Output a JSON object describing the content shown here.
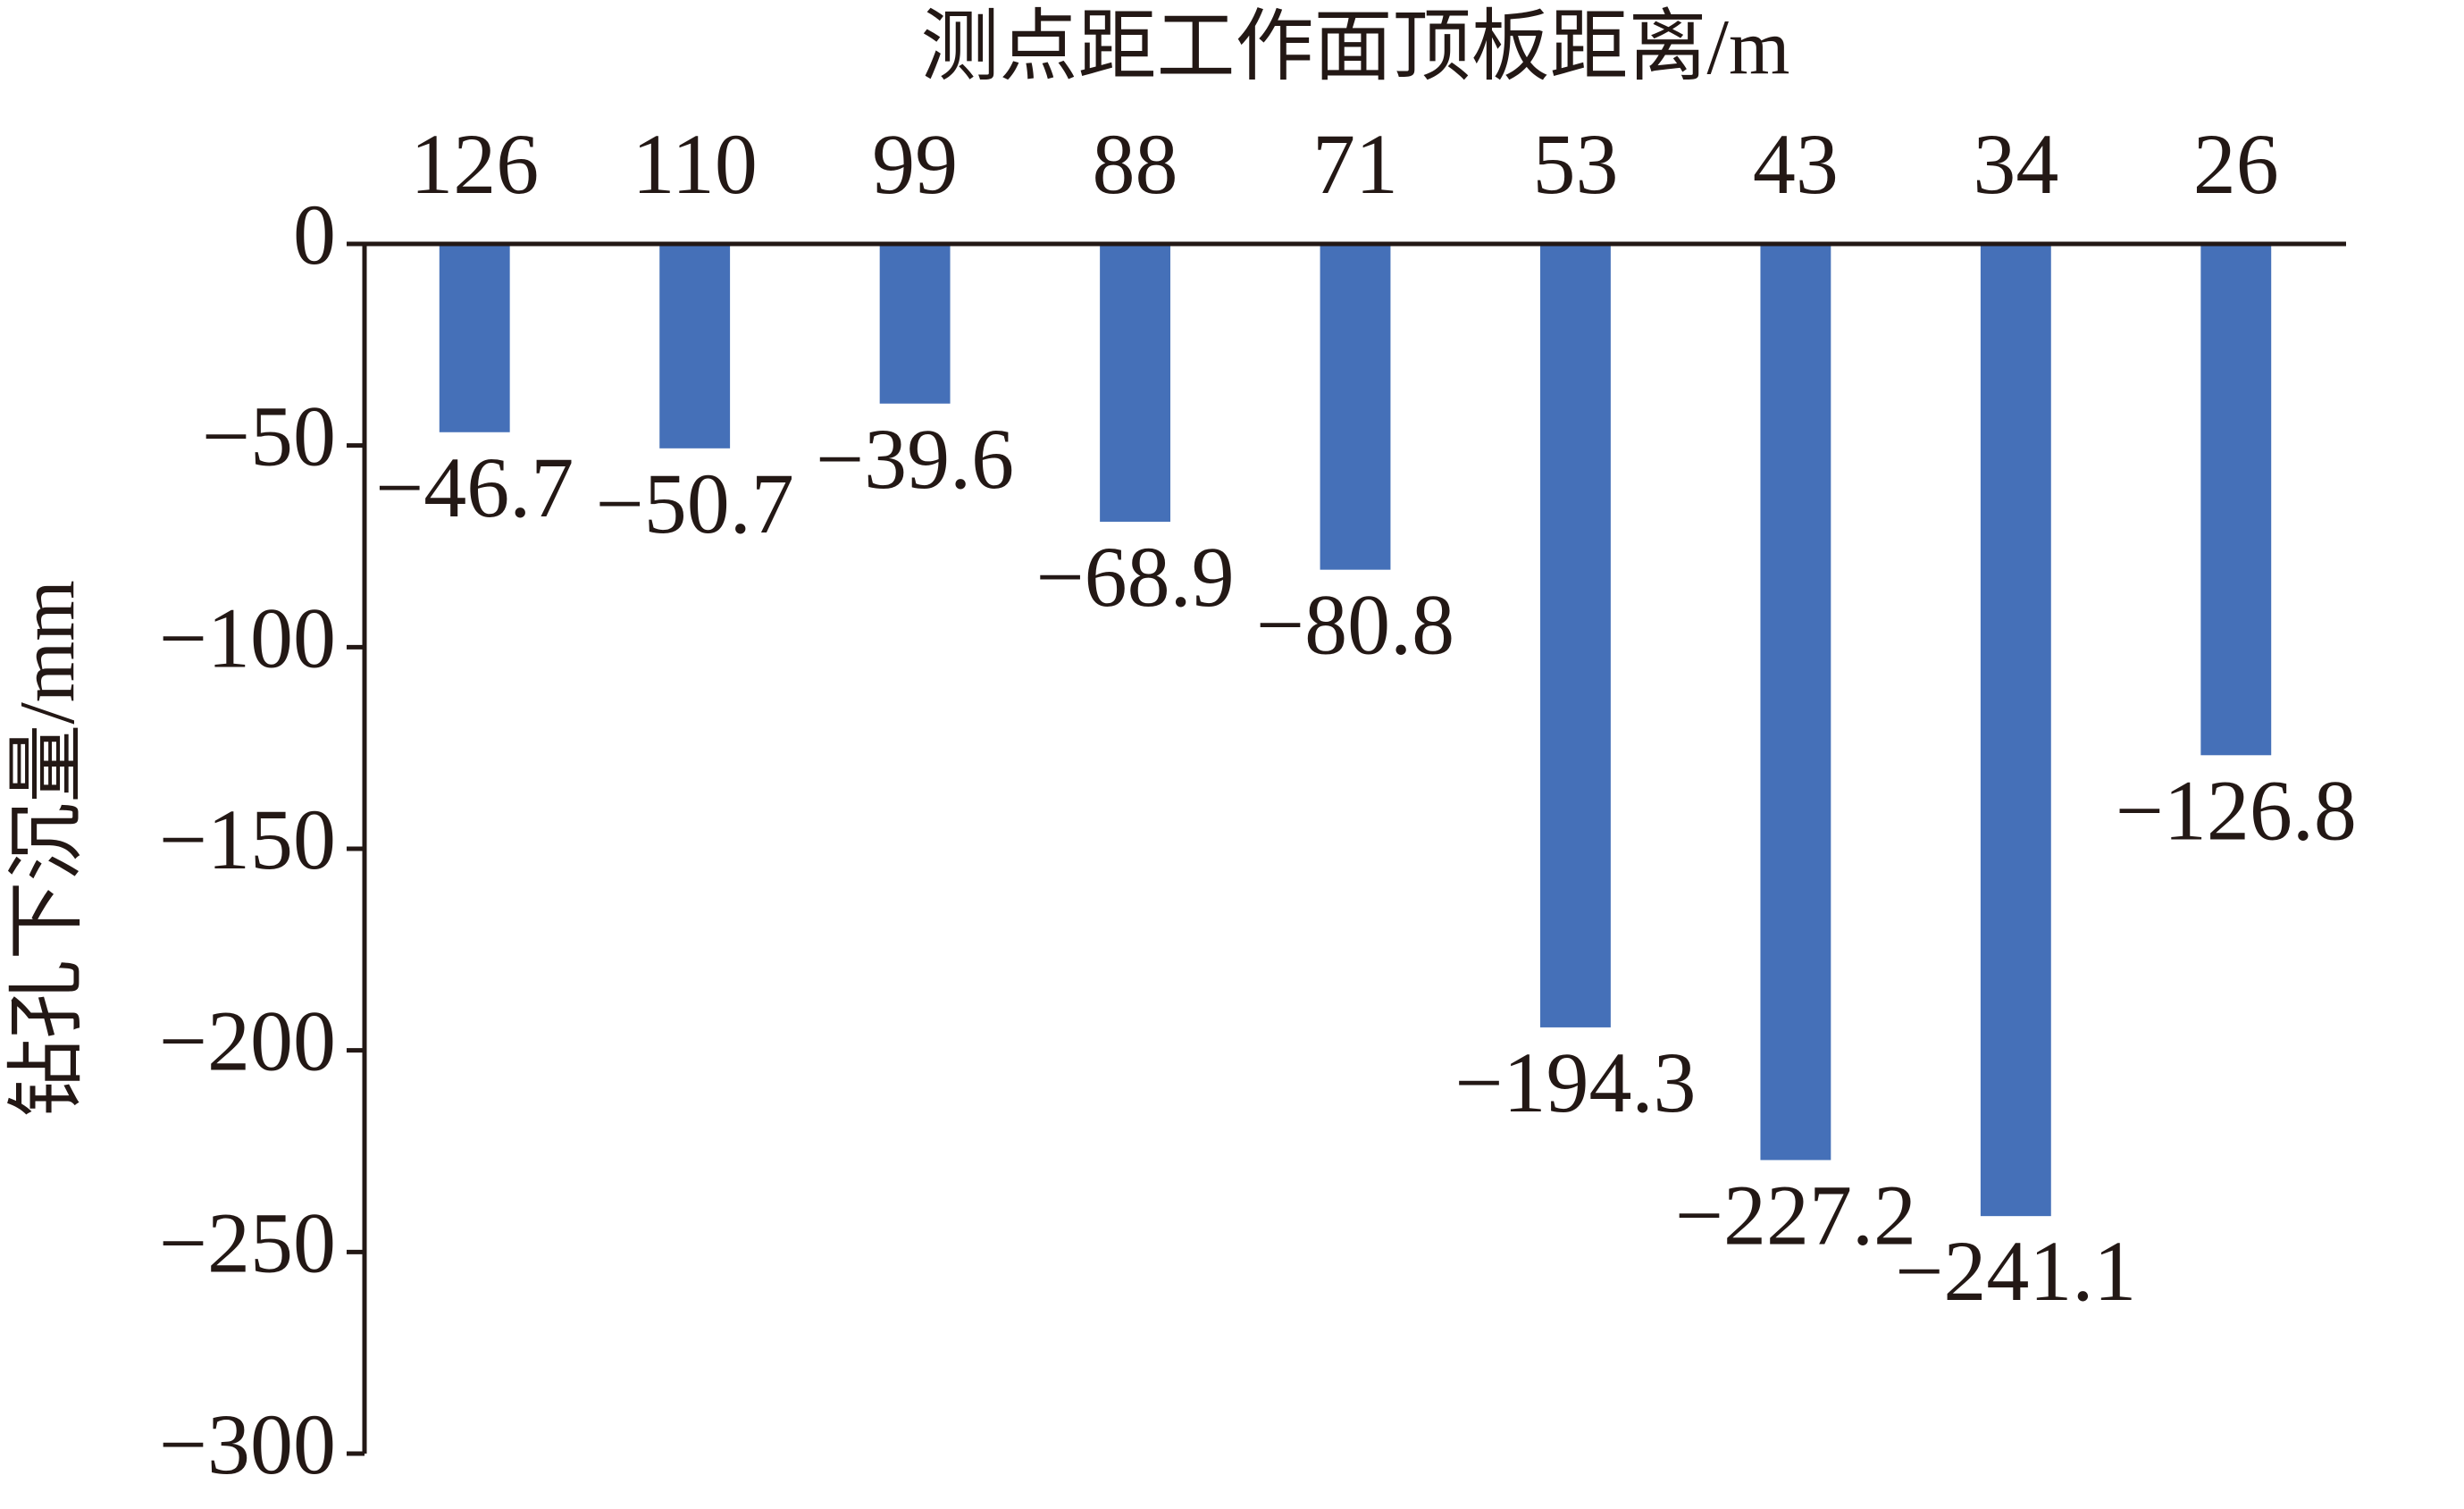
{
  "chart_data": {
    "type": "bar",
    "x_label": "测点距工作面顶板距离/m",
    "y_label": "钻孔下沉量/mm",
    "categories": [
      "126",
      "110",
      "99",
      "88",
      "71",
      "53",
      "43",
      "34",
      "26"
    ],
    "values": [
      -46.7,
      -50.7,
      -39.6,
      -68.9,
      -80.8,
      -194.3,
      -227.2,
      -241.1,
      -126.8
    ],
    "value_labels": [
      "−46.7",
      "−50.7",
      "−39.6",
      "−68.9",
      "−80.8",
      "−194.3",
      "−227.2",
      "−241.1",
      "−126.8"
    ],
    "color": "#4570b8",
    "ylim": [
      0,
      -300
    ],
    "yticks": [
      0,
      {
        "value": -50,
        "label": "−50"
      },
      {
        "value": -100,
        "label": "−100"
      },
      {
        "value": -150,
        "label": "−150"
      },
      {
        "value": -200,
        "label": "−200"
      },
      {
        "value": -250,
        "label": "−250"
      },
      {
        "value": -300,
        "label": "−300"
      }
    ],
    "grid": false
  }
}
